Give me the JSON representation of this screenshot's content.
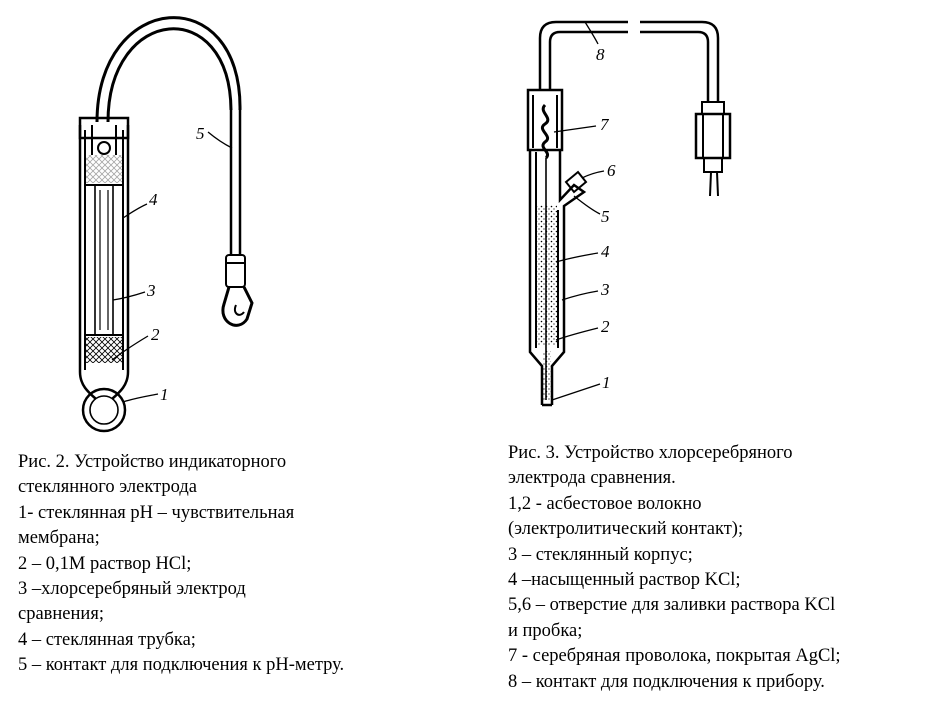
{
  "figure2": {
    "labels": [
      "1",
      "2",
      "3",
      "4",
      "5"
    ],
    "caption": [
      "Рис. 2. Устройство индикаторного",
      "стеклянного электрода",
      "1- стеклянная pH – чувствительная",
      "мембрана;",
      "2 – 0,1М раствор HCl;",
      "3 –хлорсеребряный электрод",
      "сравнения;",
      "4 – стеклянная трубка;",
      "5 – контакт для подключения к pH-метру."
    ]
  },
  "figure3": {
    "labels": [
      "1",
      "2",
      "3",
      "4",
      "5",
      "6",
      "7",
      "8"
    ],
    "caption": [
      "Рис. 3. Устройство хлорсеребряного",
      "электрода сравнения.",
      "1,2 - асбестовое волокно",
      "(электролитический контакт);",
      "3 – стеклянный корпус;",
      "4 –насыщенный раствор KCl;",
      "5,6 – отверстие для заливки раствора KCl",
      "и пробка;",
      "7 - серебряная проволока, покрытая AgCl;",
      "8 – контакт для подключения к прибору."
    ]
  }
}
